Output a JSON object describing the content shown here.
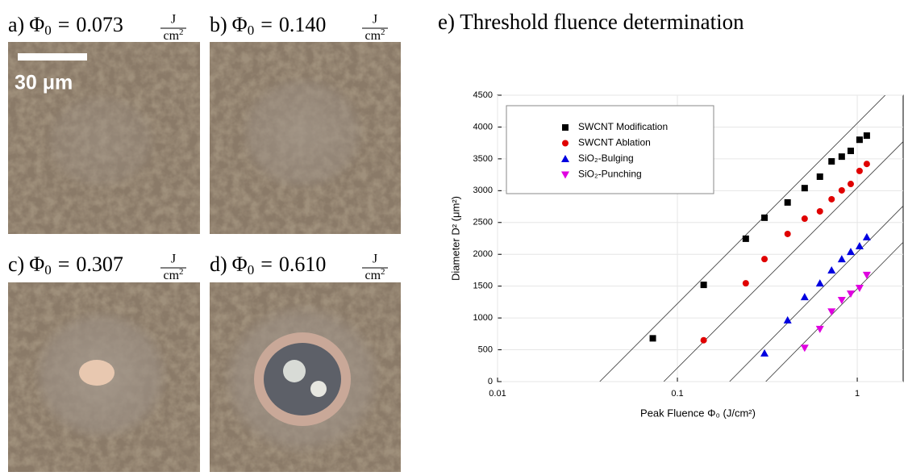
{
  "fluence_label": {
    "symbol": "Φ",
    "sub": "0",
    "eq": "=",
    "num": "J",
    "den": "cm",
    "den_exp": "2"
  },
  "panels": [
    {
      "letter": "a)",
      "value": "0.073"
    },
    {
      "letter": "b)",
      "value": "0.140"
    },
    {
      "letter": "c)",
      "value": "0.307"
    },
    {
      "letter": "d)",
      "value": "0.610"
    }
  ],
  "scale_bar": "30 μm",
  "chart_title": "e) Threshold fluence determination",
  "chart_data": {
    "type": "scatter",
    "x_label": "Peak Fluence Φ₀ (J/cm²)",
    "y_label": "Diameter D² (μm²)",
    "x_scale": "log",
    "xlim": [
      0.01,
      1.8
    ],
    "xticks": [
      0.01,
      0.1,
      1
    ],
    "ylim": [
      0,
      4500
    ],
    "yticks": [
      0,
      500,
      1000,
      1500,
      2000,
      2500,
      3000,
      3500,
      4000,
      4500
    ],
    "grid": true,
    "legend": "upper left",
    "series": [
      {
        "name": "SWCNT Modification",
        "color": "#000000",
        "marker": "square",
        "x": [
          0.073,
          0.14,
          0.24,
          0.305,
          0.41,
          0.51,
          0.62,
          0.72,
          0.82,
          0.92,
          1.03,
          1.13
        ],
        "values": [
          680,
          1520,
          2245,
          2575,
          2815,
          3040,
          3220,
          3460,
          3535,
          3625,
          3800,
          3865
        ],
        "fit": {
          "x": [
            0.037,
            1.43
          ],
          "values": [
            0,
            4500
          ]
        }
      },
      {
        "name": "SWCNT Ablation",
        "color": "#e00000",
        "marker": "circle",
        "x": [
          0.14,
          0.24,
          0.305,
          0.41,
          0.51,
          0.62,
          0.72,
          0.82,
          0.92,
          1.03,
          1.13
        ],
        "values": [
          650,
          1545,
          1925,
          2320,
          2560,
          2675,
          2865,
          3005,
          3105,
          3310,
          3420
        ],
        "fit": {
          "x": [
            0.084,
            1.8
          ],
          "values": [
            0,
            3770
          ]
        }
      },
      {
        "name": "SiO₂-Bulging",
        "color": "#0000e0",
        "marker": "triangle-up",
        "x": [
          0.305,
          0.41,
          0.51,
          0.62,
          0.72,
          0.82,
          0.92,
          1.03,
          1.13
        ],
        "values": [
          445,
          965,
          1330,
          1545,
          1750,
          1925,
          2040,
          2130,
          2270
        ],
        "fit": {
          "x": [
            0.195,
            1.8
          ],
          "values": [
            0,
            2760
          ]
        }
      },
      {
        "name": "SiO₂-Punching",
        "color": "#e000e0",
        "marker": "triangle-down",
        "x": [
          0.51,
          0.62,
          0.72,
          0.82,
          0.92,
          1.03,
          1.13
        ],
        "values": [
          530,
          825,
          1100,
          1280,
          1380,
          1470,
          1675
        ],
        "fit": {
          "x": [
            0.31,
            1.8
          ],
          "values": [
            0,
            2190
          ]
        }
      }
    ]
  }
}
